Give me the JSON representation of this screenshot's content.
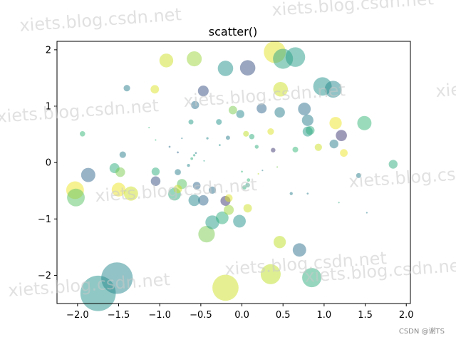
{
  "chart_data": {
    "type": "scatter",
    "title": "scatter()",
    "xlabel": "",
    "ylabel": "",
    "xlim": [
      -2.25,
      2.05
    ],
    "ylim": [
      -2.5,
      2.15
    ],
    "xticks": [
      -2.0,
      -1.5,
      -1.0,
      -0.5,
      0.0,
      0.5,
      1.0,
      1.5,
      2.0
    ],
    "yticks": [
      -2,
      -1,
      0,
      1,
      2
    ],
    "xtick_labels": [
      "−2.0",
      "−1.5",
      "−1.0",
      "−0.5",
      "0.0",
      "0.5",
      "1.0",
      "1.5",
      "2.0"
    ],
    "ytick_labels": [
      "−2",
      "−1",
      "0",
      "1",
      "2"
    ],
    "grid": false,
    "alpha": 0.5,
    "colormap": [
      "#440154",
      "#31688e",
      "#21918c",
      "#35b779",
      "#bddf26",
      "#fde725"
    ],
    "points": [
      {
        "x": -1.75,
        "y": -2.32,
        "size": 0.92,
        "c": 0.4
      },
      {
        "x": -1.52,
        "y": -2.05,
        "size": 0.82,
        "c": 0.35
      },
      {
        "x": -0.2,
        "y": -2.22,
        "size": 0.68,
        "c": 0.85
      },
      {
        "x": 0.35,
        "y": -1.98,
        "size": 0.52,
        "c": 0.8
      },
      {
        "x": 0.85,
        "y": -2.04,
        "size": 0.5,
        "c": 0.55
      },
      {
        "x": 0.7,
        "y": -1.55,
        "size": 0.35,
        "c": 0.25
      },
      {
        "x": 0.46,
        "y": -1.41,
        "size": 0.32,
        "c": 0.8
      },
      {
        "x": -0.43,
        "y": -1.27,
        "size": 0.43,
        "c": 0.7
      },
      {
        "x": -0.36,
        "y": -1.06,
        "size": 0.36,
        "c": 0.45
      },
      {
        "x": -0.24,
        "y": -0.98,
        "size": 0.33,
        "c": 0.55
      },
      {
        "x": -0.03,
        "y": -1.04,
        "size": 0.33,
        "c": 0.4
      },
      {
        "x": 0.07,
        "y": -0.81,
        "size": 0.22,
        "c": 0.85
      },
      {
        "x": -0.16,
        "y": -0.84,
        "size": 0.26,
        "c": 0.75
      },
      {
        "x": -0.2,
        "y": -0.68,
        "size": 0.26,
        "c": 0.1
      },
      {
        "x": -0.16,
        "y": -0.63,
        "size": 0.2,
        "c": 0.9
      },
      {
        "x": -0.47,
        "y": -0.67,
        "size": 0.27,
        "c": 0.2
      },
      {
        "x": -0.58,
        "y": -0.67,
        "size": 0.3,
        "c": 0.35
      },
      {
        "x": -0.82,
        "y": -0.56,
        "size": 0.33,
        "c": 0.55
      },
      {
        "x": -0.73,
        "y": -0.38,
        "size": 0.26,
        "c": 0.65
      },
      {
        "x": -0.78,
        "y": -0.47,
        "size": 0.22,
        "c": 0.85
      },
      {
        "x": -0.55,
        "y": -0.41,
        "size": 0.2,
        "c": 0.2
      },
      {
        "x": -0.36,
        "y": -0.49,
        "size": 0.19,
        "c": 0.25
      },
      {
        "x": -2.03,
        "y": -0.49,
        "size": 0.46,
        "c": 0.95
      },
      {
        "x": -2.02,
        "y": -0.62,
        "size": 0.46,
        "c": 0.65
      },
      {
        "x": -1.87,
        "y": -0.22,
        "size": 0.37,
        "c": 0.2
      },
      {
        "x": -1.5,
        "y": -0.48,
        "size": 0.36,
        "c": 0.95
      },
      {
        "x": -1.35,
        "y": -0.55,
        "size": 0.37,
        "c": 0.85
      },
      {
        "x": -1.55,
        "y": -0.1,
        "size": 0.26,
        "c": 0.55
      },
      {
        "x": -1.48,
        "y": -0.17,
        "size": 0.25,
        "c": 0.7
      },
      {
        "x": -1.05,
        "y": -0.33,
        "size": 0.25,
        "c": 0.15
      },
      {
        "x": -1.05,
        "y": -0.16,
        "size": 0.21,
        "c": 0.55
      },
      {
        "x": -0.78,
        "y": -0.17,
        "size": 0.16,
        "c": 0.3
      },
      {
        "x": -1.45,
        "y": 0.14,
        "size": 0.17,
        "c": 0.3
      },
      {
        "x": -1.94,
        "y": 0.51,
        "size": 0.14,
        "c": 0.6
      },
      {
        "x": -0.65,
        "y": -0.05,
        "size": 0.08,
        "c": 0.35
      },
      {
        "x": -0.61,
        "y": 0.07,
        "size": 0.07,
        "c": 0.55
      },
      {
        "x": -0.58,
        "y": 0.13,
        "size": 0.06,
        "c": 0.5
      },
      {
        "x": -0.56,
        "y": 0.17,
        "size": 0.05,
        "c": 0.3
      },
      {
        "x": -0.78,
        "y": 0.18,
        "size": 0.05,
        "c": 0.2
      },
      {
        "x": -0.88,
        "y": 0.28,
        "size": 0.05,
        "c": 0.25
      },
      {
        "x": -0.73,
        "y": 0.43,
        "size": 0.04,
        "c": 0.3
      },
      {
        "x": -1.13,
        "y": 0.62,
        "size": 0.03,
        "c": 0.6
      },
      {
        "x": -1.05,
        "y": 0.4,
        "size": 0.04,
        "c": 0.6
      },
      {
        "x": -0.92,
        "y": 1.81,
        "size": 0.36,
        "c": 0.85
      },
      {
        "x": -0.58,
        "y": 1.84,
        "size": 0.39,
        "c": 0.75
      },
      {
        "x": -0.2,
        "y": 1.67,
        "size": 0.4,
        "c": 0.4
      },
      {
        "x": 0.07,
        "y": 1.68,
        "size": 0.4,
        "c": 0.15
      },
      {
        "x": 0.4,
        "y": 1.96,
        "size": 0.57,
        "c": 0.92
      },
      {
        "x": 0.5,
        "y": 1.84,
        "size": 0.52,
        "c": 0.5
      },
      {
        "x": 0.65,
        "y": 1.87,
        "size": 0.51,
        "c": 0.45
      },
      {
        "x": 0.98,
        "y": 1.35,
        "size": 0.48,
        "c": 0.4
      },
      {
        "x": 1.11,
        "y": 1.3,
        "size": 0.44,
        "c": 0.35
      },
      {
        "x": 0.47,
        "y": 1.3,
        "size": 0.38,
        "c": 0.85
      },
      {
        "x": -1.06,
        "y": 1.3,
        "size": 0.22,
        "c": 0.9
      },
      {
        "x": -1.4,
        "y": 1.32,
        "size": 0.17,
        "c": 0.3
      },
      {
        "x": -0.47,
        "y": 1.27,
        "size": 0.28,
        "c": 0.15
      },
      {
        "x": -0.57,
        "y": 1.02,
        "size": 0.21,
        "c": 0.25
      },
      {
        "x": -0.02,
        "y": 0.86,
        "size": 0.21,
        "c": 0.35
      },
      {
        "x": -0.11,
        "y": 0.93,
        "size": 0.22,
        "c": 0.7
      },
      {
        "x": 0.24,
        "y": 0.96,
        "size": 0.26,
        "c": 0.2
      },
      {
        "x": 0.46,
        "y": 0.89,
        "size": 0.27,
        "c": 0.3
      },
      {
        "x": 0.76,
        "y": 0.95,
        "size": 0.33,
        "c": 0.25
      },
      {
        "x": 0.8,
        "y": 0.75,
        "size": 0.3,
        "c": 0.3
      },
      {
        "x": 0.8,
        "y": 0.55,
        "size": 0.26,
        "c": 0.45
      },
      {
        "x": 0.83,
        "y": 0.57,
        "size": 0.23,
        "c": 0.55
      },
      {
        "x": 1.14,
        "y": 0.7,
        "size": 0.32,
        "c": 0.95
      },
      {
        "x": 1.21,
        "y": 0.48,
        "size": 0.29,
        "c": 0.1
      },
      {
        "x": 1.12,
        "y": 0.33,
        "size": 0.23,
        "c": 0.3
      },
      {
        "x": 1.24,
        "y": 0.17,
        "size": 0.2,
        "c": 0.95
      },
      {
        "x": 1.49,
        "y": 0.7,
        "size": 0.37,
        "c": 0.6
      },
      {
        "x": 0.93,
        "y": 0.27,
        "size": 0.19,
        "c": 0.85
      },
      {
        "x": 0.65,
        "y": 0.23,
        "size": 0.15,
        "c": 0.6
      },
      {
        "x": 0.35,
        "y": 0.55,
        "size": 0.17,
        "c": 0.9
      },
      {
        "x": 0.05,
        "y": 0.51,
        "size": 0.15,
        "c": 0.8
      },
      {
        "x": 0.12,
        "y": 0.46,
        "size": 0.14,
        "c": 0.55
      },
      {
        "x": 0.18,
        "y": 0.28,
        "size": 0.1,
        "c": 0.55
      },
      {
        "x": 0.38,
        "y": 0.22,
        "size": 0.12,
        "c": 0.1
      },
      {
        "x": -0.17,
        "y": 0.44,
        "size": 0.11,
        "c": 0.3
      },
      {
        "x": -0.28,
        "y": 0.72,
        "size": 0.15,
        "c": 0.4
      },
      {
        "x": -0.62,
        "y": 0.72,
        "size": 0.13,
        "c": 0.45
      },
      {
        "x": -0.42,
        "y": 0.43,
        "size": 0.06,
        "c": 0.35
      },
      {
        "x": -0.27,
        "y": 0.31,
        "size": 0.05,
        "c": 0.4
      },
      {
        "x": -0.46,
        "y": 0.03,
        "size": 0.04,
        "c": 0.5
      },
      {
        "x": 1.84,
        "y": -0.03,
        "size": 0.23,
        "c": 0.55
      },
      {
        "x": 1.42,
        "y": -0.23,
        "size": 0.13,
        "c": 0.3
      },
      {
        "x": 0.07,
        "y": -0.4,
        "size": 0.12,
        "c": 0.5
      },
      {
        "x": 0.03,
        "y": -0.44,
        "size": 0.11,
        "c": 0.55
      },
      {
        "x": 0.08,
        "y": -0.31,
        "size": 0.09,
        "c": 0.6
      },
      {
        "x": 0.0,
        "y": -0.16,
        "size": 0.05,
        "c": 0.6
      },
      {
        "x": 0.2,
        "y": -0.2,
        "size": 0.04,
        "c": 0.8
      },
      {
        "x": 0.25,
        "y": -0.14,
        "size": 0.04,
        "c": 0.3
      },
      {
        "x": 0.6,
        "y": -0.55,
        "size": 0.08,
        "c": 0.3
      },
      {
        "x": 0.8,
        "y": -0.55,
        "size": 0.05,
        "c": 0.3
      },
      {
        "x": 1.18,
        "y": -0.71,
        "size": 0.04,
        "c": 0.55
      },
      {
        "x": 1.52,
        "y": -0.89,
        "size": 0.04,
        "c": 0.3
      },
      {
        "x": 0.43,
        "y": -0.08,
        "size": 0.04,
        "c": 0.7
      }
    ]
  },
  "watermarks": [
    {
      "text": "xiets.blog.csdn.net"
    },
    {
      "text": "xiets.blog.csdn.net"
    },
    {
      "text": "xiets.blog.csdn.net"
    },
    {
      "text": "xiets.blog.csdn.net"
    },
    {
      "text": "xiets.blog.csdn.net"
    },
    {
      "text": "xiets.blog.csdn.net"
    },
    {
      "text": "xiets.blog.csdn.net"
    },
    {
      "text": "xiets.blog.csdn.net"
    },
    {
      "text": "xiets.blog.csdn.net"
    },
    {
      "text": "et"
    },
    {
      "text": "xie"
    }
  ],
  "credit": "CSDN @谢TS"
}
